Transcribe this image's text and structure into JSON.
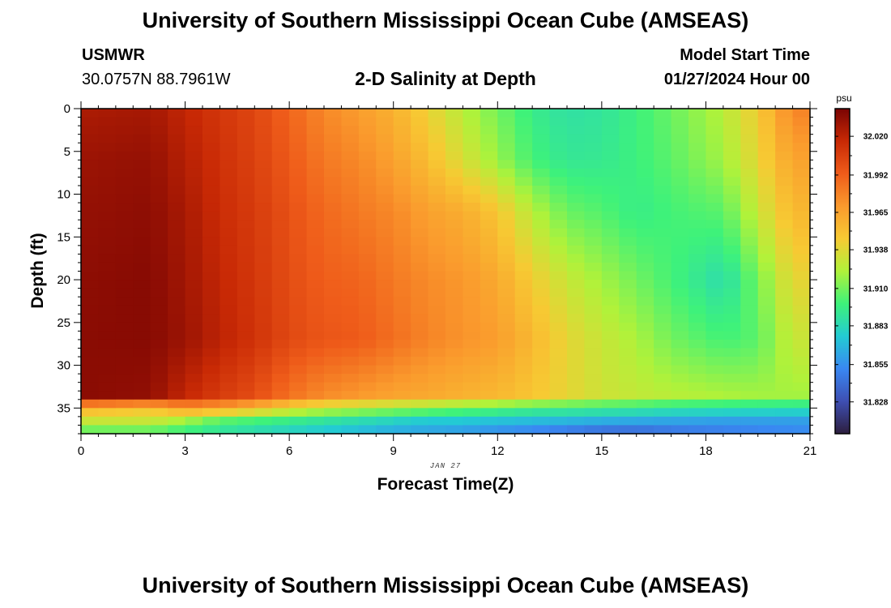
{
  "header": {
    "title": "University of Southern Mississippi Ocean Cube (AMSEAS)",
    "station_id": "USMWR",
    "coordinates": "30.0757N  88.7961W",
    "subtitle": "2-D Salinity at Depth",
    "start_label": "Model Start Time",
    "start_value": "01/27/2024 Hour 00"
  },
  "footer": {
    "title": "University of Southern Mississippi Ocean Cube (AMSEAS)"
  },
  "chart_data": {
    "type": "heatmap",
    "title": "2-D Salinity at Depth",
    "xlabel": "Forecast Time(Z)",
    "ylabel": "Depth (ft)",
    "date_label": "JAN 27",
    "xlim": [
      0,
      21
    ],
    "ylim": [
      0,
      38
    ],
    "x_ticks": [
      0,
      3,
      6,
      9,
      12,
      15,
      18,
      21
    ],
    "y_ticks": [
      0,
      5,
      10,
      15,
      20,
      25,
      30,
      35
    ],
    "colorbar": {
      "unit": "psu",
      "range": [
        31.805,
        32.04
      ],
      "labels": [
        "32.020",
        "31.992",
        "31.965",
        "31.938",
        "31.910",
        "31.883",
        "31.855",
        "31.828"
      ]
    },
    "palette": [
      "#2d1e3e",
      "#3e4fb3",
      "#3988f2",
      "#23cbd3",
      "#3ef27a",
      "#b0f23a",
      "#f7ca33",
      "#fa9a2d",
      "#ef5c1a",
      "#c82905",
      "#7a0403"
    ],
    "times": [
      0,
      0.5,
      1,
      1.5,
      2,
      2.5,
      3,
      3.5,
      4,
      4.5,
      5,
      5.5,
      6,
      6.5,
      7,
      7.5,
      8,
      8.5,
      9,
      9.5,
      10,
      10.5,
      11,
      11.5,
      12,
      12.5,
      13,
      13.5,
      14,
      14.5,
      15,
      15.5,
      16,
      16.5,
      17,
      17.5,
      18,
      18.5,
      19,
      19.5,
      20,
      20.5
    ],
    "depth_levels": [
      0,
      1,
      2,
      3,
      4,
      5,
      6,
      7,
      8,
      9,
      10,
      11,
      12,
      13,
      14,
      15,
      16,
      17,
      18,
      19,
      20,
      21,
      22,
      23,
      24,
      25,
      26,
      27,
      28,
      29,
      30,
      31,
      32,
      33,
      34,
      35,
      36,
      37
    ],
    "profile_columns": [
      {
        "t": 0,
        "values": [
          32.025,
          32.03,
          32.032,
          32.034,
          32.035,
          32.035,
          31.96,
          31.93,
          31.9
        ]
      },
      {
        "t": 2,
        "values": [
          32.027,
          32.032,
          32.034,
          32.036,
          32.036,
          32.033,
          31.95,
          31.93,
          31.9
        ]
      },
      {
        "t": 3,
        "values": [
          32.018,
          32.022,
          32.026,
          32.028,
          32.03,
          32.018,
          31.97,
          31.92,
          31.89
        ]
      },
      {
        "t": 4,
        "values": [
          32.01,
          32.013,
          32.015,
          32.018,
          32.02,
          32.008,
          31.965,
          31.905,
          31.885
        ]
      },
      {
        "t": 5,
        "values": [
          32.003,
          32.005,
          32.008,
          32.01,
          32.012,
          32.0,
          31.955,
          31.9,
          31.88
        ]
      },
      {
        "t": 6,
        "values": [
          31.99,
          31.994,
          31.998,
          32.0,
          32.002,
          31.985,
          31.94,
          31.895,
          31.875
        ]
      },
      {
        "t": 7,
        "values": [
          31.976,
          31.982,
          31.988,
          31.992,
          31.996,
          31.975,
          31.93,
          31.89,
          31.87
        ]
      },
      {
        "t": 8,
        "values": [
          31.968,
          31.976,
          31.982,
          31.99,
          31.994,
          31.97,
          31.925,
          31.885,
          31.865
        ]
      },
      {
        "t": 9,
        "values": [
          31.958,
          31.966,
          31.976,
          31.982,
          31.986,
          31.965,
          31.92,
          31.88,
          31.86
        ]
      },
      {
        "t": 10,
        "values": [
          31.942,
          31.952,
          31.966,
          31.975,
          31.978,
          31.962,
          31.915,
          31.875,
          31.858
        ]
      },
      {
        "t": 11,
        "values": [
          31.925,
          31.935,
          31.96,
          31.97,
          31.972,
          31.958,
          31.91,
          31.875,
          31.855
        ]
      },
      {
        "t": 12,
        "values": [
          31.91,
          31.918,
          31.948,
          31.962,
          31.968,
          31.955,
          31.905,
          31.872,
          31.85
        ]
      },
      {
        "t": 13,
        "values": [
          31.895,
          31.9,
          31.925,
          31.945,
          31.955,
          31.948,
          31.9,
          31.87,
          31.845
        ]
      },
      {
        "t": 14,
        "values": [
          31.888,
          31.892,
          31.908,
          31.93,
          31.94,
          31.94,
          31.898,
          31.868,
          31.84
        ]
      },
      {
        "t": 15,
        "values": [
          31.89,
          31.893,
          31.903,
          31.92,
          31.93,
          31.932,
          31.896,
          31.865,
          31.835
        ]
      },
      {
        "t": 16,
        "values": [
          31.898,
          31.898,
          31.895,
          31.91,
          31.922,
          31.928,
          31.894,
          31.863,
          31.835
        ]
      },
      {
        "t": 17,
        "values": [
          31.908,
          31.905,
          31.9,
          31.9,
          31.91,
          31.925,
          31.89,
          31.862,
          31.84
        ]
      },
      {
        "t": 18.5,
        "values": [
          31.925,
          31.92,
          31.905,
          31.885,
          31.9,
          31.922,
          31.888,
          31.86,
          31.845
        ]
      },
      {
        "t": 19.5,
        "values": [
          31.945,
          31.94,
          31.93,
          31.91,
          31.905,
          31.92,
          31.887,
          31.86,
          31.847
        ]
      },
      {
        "t": 20.5,
        "values": [
          31.978,
          31.965,
          31.955,
          31.94,
          31.93,
          31.92,
          31.886,
          31.86,
          31.85
        ]
      }
    ]
  }
}
